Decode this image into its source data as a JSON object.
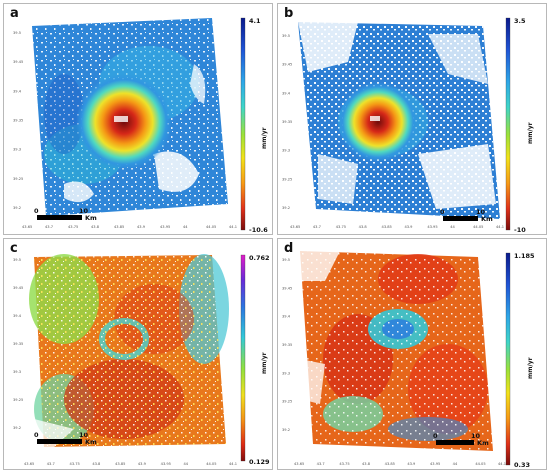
{
  "panels": [
    {
      "letter": "a",
      "scale_max": "4.1",
      "scale_min": "-10.6",
      "unit": "mm/yr",
      "scale_zero": "0",
      "scale_ten": "10",
      "scale_unit": "Km",
      "lat_ticks": [
        "39.5",
        "39.45",
        "39.4",
        "39.35",
        "39.3",
        "39.25",
        "39.2"
      ],
      "lon_ticks": [
        "43.65",
        "43.7",
        "43.75",
        "43.8",
        "43.85",
        "43.9",
        "43.95",
        "44",
        "44.05",
        "44.1"
      ],
      "colormap": "rainbow"
    },
    {
      "letter": "b",
      "scale_max": "3.5",
      "scale_min": "-10",
      "unit": "mm/yr",
      "scale_zero": "0",
      "scale_ten": "10",
      "scale_unit": "Km",
      "lat_ticks": [
        "39.5",
        "39.45",
        "39.4",
        "39.35",
        "39.3",
        "39.25",
        "39.2"
      ],
      "lon_ticks": [
        "43.65",
        "43.7",
        "43.75",
        "43.8",
        "43.85",
        "43.9",
        "43.95",
        "44",
        "44.05",
        "44.1"
      ],
      "colormap": "rainbow"
    },
    {
      "letter": "c",
      "scale_max": "0.762",
      "scale_min": "0.129",
      "unit": "mm/yr",
      "scale_zero": "0",
      "scale_ten": "10",
      "scale_unit": "Km",
      "lat_ticks": [
        "39.5",
        "39.45",
        "39.4",
        "39.35",
        "39.3",
        "39.25",
        "39.2"
      ],
      "lon_ticks": [
        "43.65",
        "43.7",
        "43.75",
        "43.8",
        "43.85",
        "43.9",
        "43.95",
        "44",
        "44.05",
        "44.1"
      ],
      "colormap": "rainbow-magenta"
    },
    {
      "letter": "d",
      "scale_max": "1.185",
      "scale_min": "0.33",
      "unit": "mm/yr",
      "scale_zero": "0",
      "scale_ten": "10",
      "scale_unit": "Km",
      "lat_ticks": [
        "39.5",
        "39.45",
        "39.4",
        "39.35",
        "39.3",
        "39.25",
        "39.2"
      ],
      "lon_ticks": [
        "43.65",
        "43.7",
        "43.75",
        "43.8",
        "43.85",
        "43.9",
        "43.95",
        "44",
        "44.05",
        "44.1"
      ],
      "colormap": "rainbow"
    }
  ]
}
